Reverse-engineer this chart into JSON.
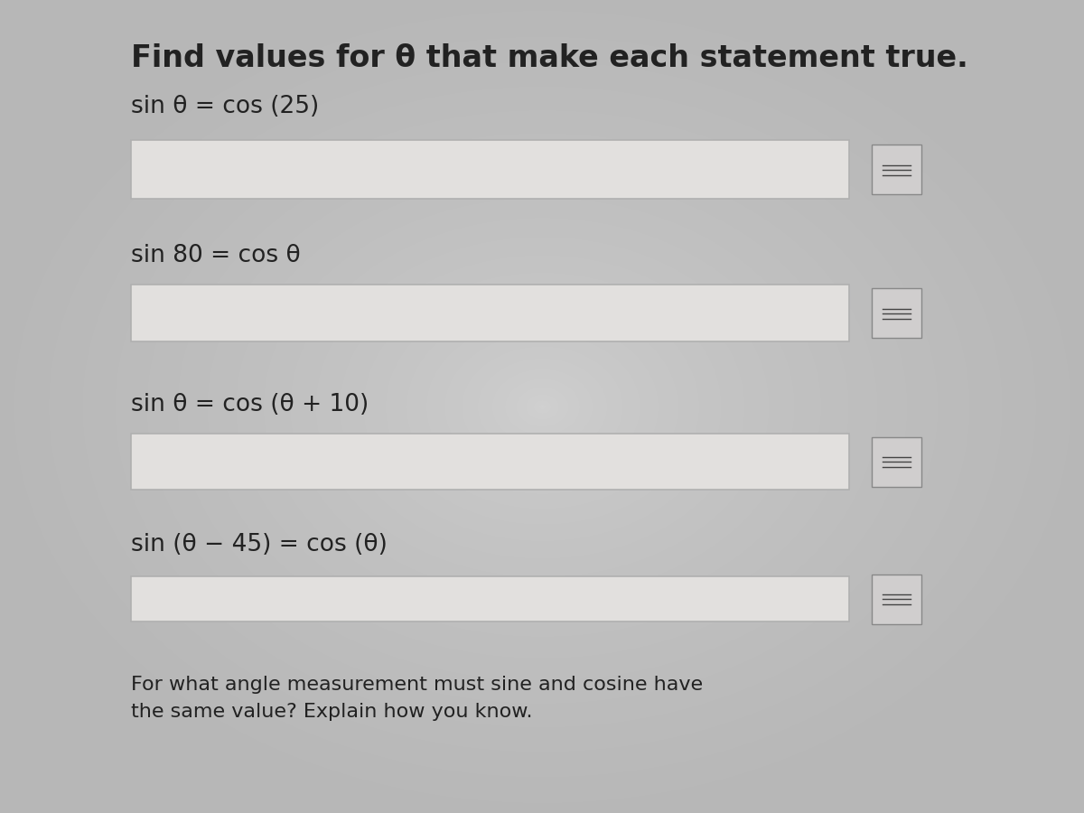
{
  "title": "Find values for θ that make each statement true.",
  "title_fontsize": 24,
  "background_color": "#b8b8b8",
  "center_color": "#d0d0d0",
  "equations": [
    "sin θ = cos (25)",
    "sin 80 = cos θ",
    "sin θ = cos (θ + 10)",
    "sin (θ − 45) = cos (θ)"
  ],
  "equation_fontsize": 19,
  "input_box_facecolor": "#e2e0de",
  "input_box_edgecolor": "#b0b0b0",
  "icon_facecolor": "#d0cece",
  "icon_edgecolor": "#888888",
  "footer_text": "For what angle measurement must sine and cosine have\nthe same value? Explain how you know.",
  "footer_fontsize": 16,
  "text_color": "#222222"
}
